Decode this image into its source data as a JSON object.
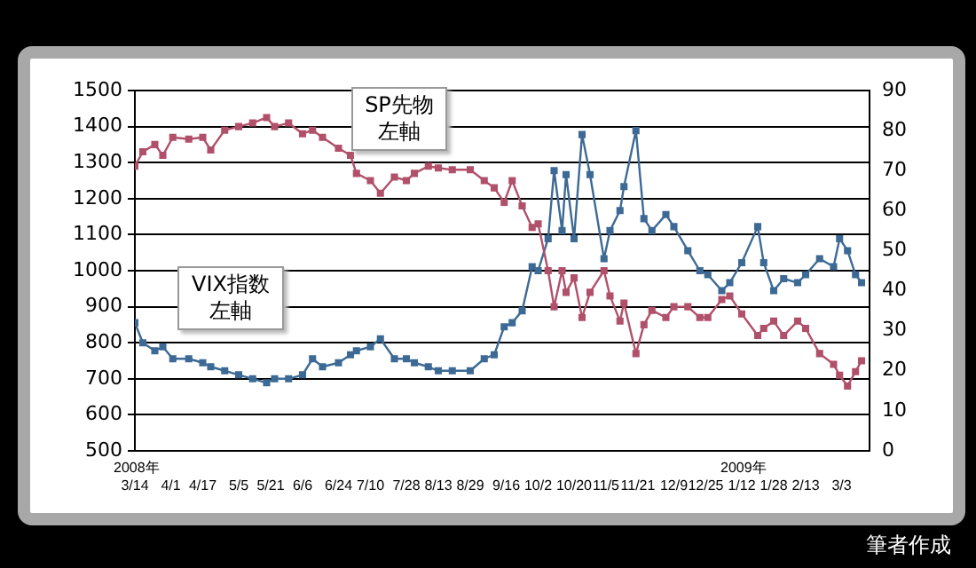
{
  "chart_data": {
    "type": "line",
    "x": [
      "2008-03-14",
      "2008-03-18",
      "2008-03-24",
      "2008-03-28",
      "2008-04-02",
      "2008-04-10",
      "2008-04-17",
      "2008-04-21",
      "2008-04-28",
      "2008-05-05",
      "2008-05-12",
      "2008-05-19",
      "2008-05-23",
      "2008-05-30",
      "2008-06-06",
      "2008-06-11",
      "2008-06-16",
      "2008-06-24",
      "2008-06-30",
      "2008-07-03",
      "2008-07-10",
      "2008-07-15",
      "2008-07-22",
      "2008-07-28",
      "2008-08-01",
      "2008-08-08",
      "2008-08-13",
      "2008-08-20",
      "2008-08-29",
      "2008-09-05",
      "2008-09-10",
      "2008-09-15",
      "2008-09-19",
      "2008-09-24",
      "2008-09-29",
      "2008-10-02",
      "2008-10-07",
      "2008-10-10",
      "2008-10-14",
      "2008-10-16",
      "2008-10-20",
      "2008-10-24",
      "2008-10-28",
      "2008-11-04",
      "2008-11-07",
      "2008-11-12",
      "2008-11-14",
      "2008-11-20",
      "2008-11-24",
      "2008-11-28",
      "2008-12-05",
      "2008-12-09",
      "2008-12-16",
      "2008-12-22",
      "2008-12-26",
      "2009-01-02",
      "2009-01-06",
      "2009-01-12",
      "2009-01-20",
      "2009-01-23",
      "2009-01-28",
      "2009-02-02",
      "2009-02-09",
      "2009-02-13",
      "2009-02-20",
      "2009-02-27",
      "2009-03-02",
      "2009-03-06",
      "2009-03-10",
      "2009-03-13"
    ],
    "series": [
      {
        "color": "#b0506a",
        "values": [
          1290,
          1330,
          1350,
          1320,
          1370,
          1365,
          1370,
          1335,
          1390,
          1400,
          1410,
          1425,
          1400,
          1410,
          1380,
          1390,
          1370,
          1340,
          1320,
          1270,
          1250,
          1215,
          1260,
          1250,
          1270,
          1290,
          1285,
          1280,
          1280,
          1250,
          1230,
          1190,
          1250,
          1180,
          1120,
          1130,
          1000,
          900,
          1000,
          940,
          980,
          870,
          940,
          1000,
          930,
          860,
          910,
          770,
          850,
          890,
          870,
          900,
          900,
          870,
          870,
          920,
          930,
          880,
          820,
          840,
          860,
          820,
          860,
          840,
          770,
          740,
          710,
          680,
          720,
          750
        ]
      },
      {
        "color": "#3d6a95",
        "axis": "y2",
        "values": [
          32,
          27,
          25,
          26,
          23,
          23,
          22,
          21,
          20,
          19,
          18,
          17,
          18,
          18,
          19,
          23,
          21,
          22,
          24,
          25,
          26,
          28,
          23,
          23,
          22,
          21,
          20,
          20,
          20,
          23,
          24,
          31,
          32,
          35,
          46,
          45,
          53,
          70,
          55,
          69,
          53,
          79,
          69,
          48,
          55,
          60,
          66,
          80,
          58,
          55,
          59,
          56,
          50,
          45,
          44,
          40,
          42,
          47,
          56,
          47,
          40,
          43,
          42,
          44,
          48,
          46,
          53,
          50,
          44,
          42
        ]
      }
    ],
    "xlim": [
      "2008-03-14",
      "2009-03-17"
    ],
    "xticks": [
      {
        "value": "2008-03-14",
        "label": "3/14"
      },
      {
        "value": "2008-04-01",
        "label": "4/1"
      },
      {
        "value": "2008-04-17",
        "label": "4/17"
      },
      {
        "value": "2008-05-05",
        "label": "5/5"
      },
      {
        "value": "2008-05-21",
        "label": "5/21"
      },
      {
        "value": "2008-06-06",
        "label": "6/6"
      },
      {
        "value": "2008-06-24",
        "label": "6/24"
      },
      {
        "value": "2008-07-10",
        "label": "7/10"
      },
      {
        "value": "2008-07-28",
        "label": "7/28"
      },
      {
        "value": "2008-08-13",
        "label": "8/13"
      },
      {
        "value": "2008-08-29",
        "label": "8/29"
      },
      {
        "value": "2008-09-16",
        "label": "9/16"
      },
      {
        "value": "2008-10-02",
        "label": "10/2"
      },
      {
        "value": "2008-10-20",
        "label": "10/20"
      },
      {
        "value": "2008-11-05",
        "label": "11/5"
      },
      {
        "value": "2008-11-21",
        "label": "11/21"
      },
      {
        "value": "2008-12-09",
        "label": "12/9"
      },
      {
        "value": "2008-12-25",
        "label": "12/25"
      },
      {
        "value": "2009-01-12",
        "label": "1/12"
      },
      {
        "value": "2009-01-28",
        "label": "1/28"
      },
      {
        "value": "2009-02-13",
        "label": "2/13"
      },
      {
        "value": "2009-03-03",
        "label": "3/3"
      }
    ],
    "ylim": [
      500,
      1500
    ],
    "yticks": [
      500,
      600,
      700,
      800,
      900,
      1000,
      1100,
      1200,
      1300,
      1400,
      1500
    ],
    "y2lim": [
      0,
      90
    ],
    "y2ticks": [
      0,
      10,
      20,
      30,
      40,
      50,
      60,
      70,
      80,
      90
    ],
    "grid": "y",
    "legend": false,
    "marker": "square",
    "line_style": "solid",
    "annotations": [
      "SP先物左軸",
      "VIX指数左軸",
      "筆者作成",
      "2008年",
      "2009年"
    ]
  }
}
